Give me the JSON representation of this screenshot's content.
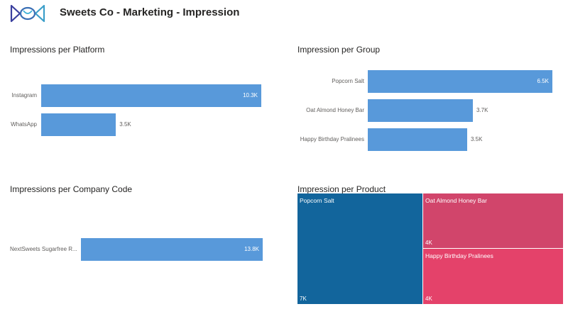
{
  "header": {
    "title": "Sweets Co - Marketing - Impression"
  },
  "colors": {
    "bar": "#5899da",
    "treemap_dark": "#12659c",
    "treemap_mid": "#d1456b",
    "treemap_pink": "#e4426a"
  },
  "platform_chart": {
    "title": "Impressions per Platform",
    "items": [
      {
        "label": "Instagram",
        "value": 10.3,
        "display": "10.3K"
      },
      {
        "label": "WhatsApp",
        "value": 3.5,
        "display": "3.5K"
      }
    ]
  },
  "group_chart": {
    "title": "Impression per Group",
    "items": [
      {
        "label": "Popcorn Salt",
        "value": 6.5,
        "display": "6.5K"
      },
      {
        "label": "Oat Almond Honey Bar",
        "value": 3.7,
        "display": "3.7K"
      },
      {
        "label": "Happy Birthday Pralinees",
        "value": 3.5,
        "display": "3.5K"
      }
    ]
  },
  "company_chart": {
    "title": "Impressions per Company Code",
    "items": [
      {
        "label": "NextSweets Sugarfree R...",
        "value": 13.8,
        "display": "13.8K"
      }
    ]
  },
  "product_treemap": {
    "title": "Impression per Product",
    "items": [
      {
        "label": "Popcorn Salt",
        "value": 7,
        "display": "7K"
      },
      {
        "label": "Oat Almond Honey Bar",
        "value": 4,
        "display": "4K"
      },
      {
        "label": "Happy Birthday Pralinees",
        "value": 4,
        "display": "4K"
      }
    ]
  }
}
